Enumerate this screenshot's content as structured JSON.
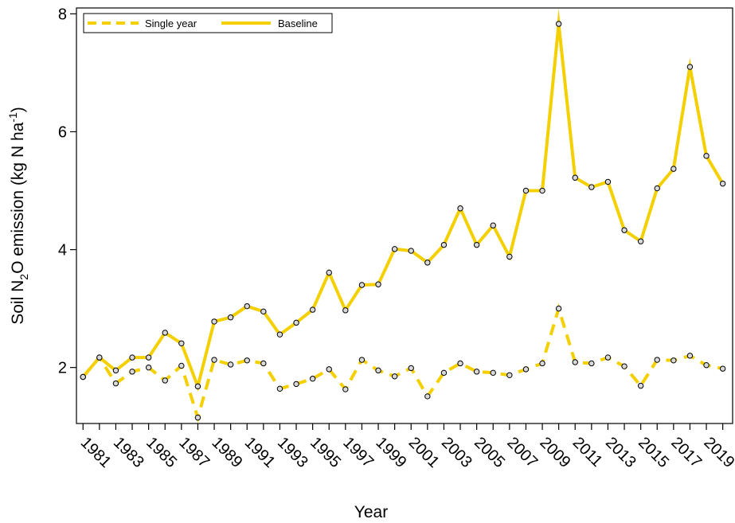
{
  "chart_data": {
    "type": "line",
    "xlabel": "Year",
    "ylabel": {
      "prefix": "Soil N",
      "sub": "2",
      "mid": "O emission (kg N ha",
      "sup": "-1",
      "suffix": ")"
    },
    "ylim": [
      1.05,
      8.1
    ],
    "xlim": [
      1980.6,
      2020.6
    ],
    "y_ticks": [
      2,
      4,
      6,
      8
    ],
    "x_ticks": [
      1981,
      1983,
      1985,
      1987,
      1989,
      1991,
      1993,
      1995,
      1997,
      1999,
      2001,
      2003,
      2005,
      2007,
      2009,
      2011,
      2013,
      2015,
      2017,
      2019
    ],
    "x_tick_marks_every_year": true,
    "legend_position": "top-left",
    "grid": false,
    "x": [
      1981,
      1982,
      1983,
      1984,
      1985,
      1986,
      1987,
      1988,
      1989,
      1990,
      1991,
      1992,
      1993,
      1994,
      1995,
      1996,
      1997,
      1998,
      1999,
      2000,
      2001,
      2002,
      2003,
      2004,
      2005,
      2006,
      2007,
      2008,
      2009,
      2010,
      2011,
      2012,
      2013,
      2014,
      2015,
      2016,
      2017,
      2018,
      2019,
      2020
    ],
    "series": [
      {
        "name": "Single year",
        "style": "dashed",
        "color": "#F5D000",
        "values": [
          1.84,
          2.17,
          1.73,
          1.93,
          2.0,
          1.78,
          2.03,
          1.15,
          2.13,
          2.05,
          2.12,
          2.07,
          1.64,
          1.72,
          1.81,
          1.97,
          1.63,
          2.13,
          1.95,
          1.85,
          1.99,
          1.51,
          1.91,
          2.07,
          1.93,
          1.91,
          1.87,
          1.97,
          2.07,
          3.0,
          2.09,
          2.07,
          2.17,
          2.02,
          1.69,
          2.13,
          2.12,
          2.2,
          2.04,
          1.98
        ]
      },
      {
        "name": "Baseline",
        "style": "solid",
        "color": "#F5D000",
        "values": [
          1.84,
          2.17,
          1.95,
          2.17,
          2.17,
          2.59,
          2.41,
          1.68,
          2.78,
          2.85,
          3.04,
          2.95,
          2.56,
          2.76,
          2.98,
          3.61,
          2.97,
          3.4,
          3.41,
          4.01,
          3.98,
          3.78,
          4.08,
          4.7,
          4.08,
          4.41,
          3.88,
          5.0,
          5.0,
          7.83,
          5.22,
          5.06,
          5.15,
          4.33,
          4.14,
          5.04,
          5.37,
          7.1,
          5.59,
          5.12
        ]
      }
    ]
  }
}
